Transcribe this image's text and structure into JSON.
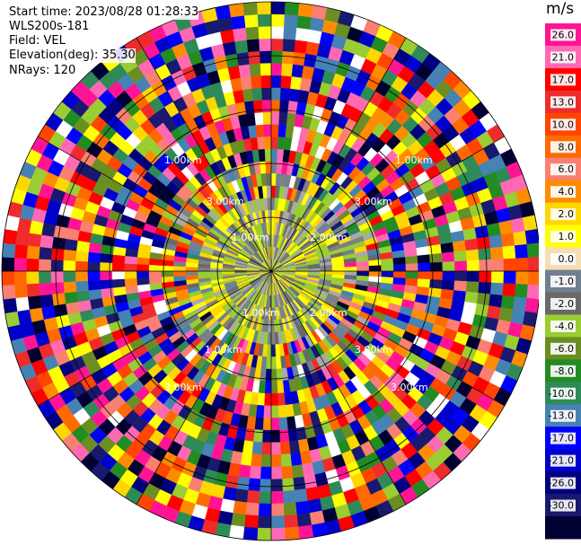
{
  "header": {
    "start_time": "Start time: 2023/08/28 01:28:33",
    "instrument": "WLS200s-181",
    "field": "Field: VEL",
    "elevation": "Elevation(deg): 35.30",
    "nrays": "NRays: 120"
  },
  "chart_data": {
    "type": "heatmap",
    "subtype": "ppi-polar",
    "title": "",
    "n_rays": 120,
    "range_rings": [
      "1.00km",
      "2.00km",
      "3.00km",
      "3.00km",
      "1.00km",
      "2.00km",
      "1.00km",
      "3.00km",
      "1.00km",
      "1.00km",
      "3.00km",
      "3.00km"
    ],
    "colorbar": {
      "unit": "m/s",
      "levels": [
        26.0,
        21.0,
        17.0,
        13.0,
        10.0,
        8.0,
        6.0,
        4.0,
        2.0,
        1.0,
        0.0,
        -1.0,
        -2.0,
        -4.0,
        -6.0,
        -8.0,
        -10.0,
        -13.0,
        -17.0,
        -21.0,
        -26.0,
        -30.0
      ],
      "labels": [
        "26.0",
        "21.0",
        "17.0",
        "13.0",
        "10.0",
        "8.0",
        "6.0",
        "4.0",
        "2.0",
        "1.0",
        "0.0",
        "-1.0",
        "-2.0",
        "-4.0",
        "-6.0",
        "-8.0",
        "-10.0",
        "-13.0",
        "-17.0",
        "-21.0",
        "-26.0",
        "-30.0"
      ],
      "colors": [
        "#ff1493",
        "#ff69b4",
        "#ff0000",
        "#ee2c2c",
        "#ff4500",
        "#ff6a00",
        "#fa8072",
        "#ff8c00",
        "#ffd700",
        "#ffff00",
        "#f5deb3",
        "#708090",
        "#696969",
        "#9acd32",
        "#6b8e23",
        "#228b22",
        "#2e8b57",
        "#4682b4",
        "#0000ff",
        "#0000cd",
        "#000080",
        "#191970",
        "#000033"
      ]
    }
  }
}
